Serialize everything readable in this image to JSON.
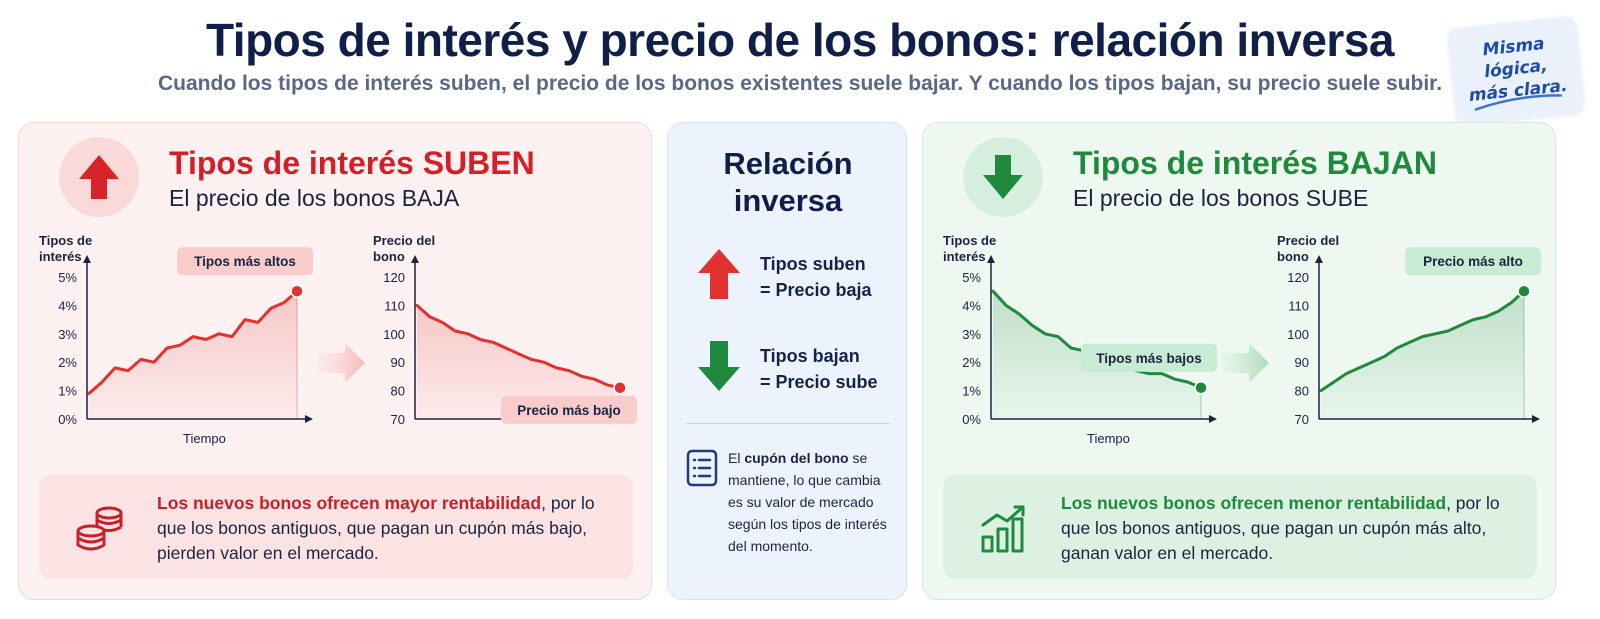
{
  "header": {
    "title": "Tipos de interés y precio de los bonos: relación inversa",
    "subtitle": "Cuando los tipos de interés suben, el precio de los bonos existentes suele bajar. Y cuando los tipos bajan, su precio suele subir."
  },
  "note": {
    "line1": "Misma lógica,",
    "line2": "más clara."
  },
  "left": {
    "title": "Tipos de interés SUBEN",
    "subtitle": "El precio de los bonos BAJA",
    "bottom_bold": "Los nuevos bonos ofrecen mayor rentabilidad",
    "bottom_rest": ", por lo que los bonos antiguos, que pagan un cupón más bajo, pierden valor en el mercado."
  },
  "center": {
    "title_line1": "Relación",
    "title_line2": "inversa",
    "up_line1": "Tipos suben",
    "up_line2": "= Precio baja",
    "down_line1": "Tipos bajan",
    "down_line2": "= Precio sube",
    "cupon_pre": "El ",
    "cupon_bold": "cupón del bono",
    "cupon_rest": " se mantiene, lo que cambia es su valor de mercado según los tipos de interés del momento."
  },
  "right": {
    "title": "Tipos de interés BAJAN",
    "subtitle": "El precio de los bonos SUBE",
    "bottom_bold": "Los nuevos bonos ofrecen menor rentabilidad",
    "bottom_rest": ", por lo que los bonos antiguos, que pagan un cupón más alto, ganan valor en el mercado."
  },
  "colors": {
    "red": "#e2312f",
    "green": "#1f8a3d",
    "navy": "#0f1f47"
  },
  "chart_data": [
    {
      "id": "left-rates",
      "type": "area",
      "color": "#e2312f",
      "ylabel": "Tipos de interés",
      "xlabel": "Tiempo",
      "yticks": [
        "0%",
        "1%",
        "2%",
        "3%",
        "4%",
        "5%"
      ],
      "ylim": [
        0,
        5
      ],
      "values": [
        0.9,
        1.3,
        1.8,
        1.7,
        2.1,
        2.0,
        2.5,
        2.6,
        2.9,
        2.8,
        3.0,
        2.9,
        3.5,
        3.4,
        3.9,
        4.1,
        4.5
      ],
      "annotation": "Tipos más altos",
      "annotation_at": "end"
    },
    {
      "id": "left-price",
      "type": "area",
      "color": "#e2312f",
      "ylabel": "Precio del bono",
      "xlabel": "",
      "yticks": [
        "70",
        "80",
        "90",
        "100",
        "110",
        "120"
      ],
      "ylim": [
        70,
        120
      ],
      "values": [
        110,
        106,
        104,
        101,
        100,
        98,
        97,
        95,
        93,
        91,
        90,
        88,
        87,
        85,
        84,
        82,
        81
      ],
      "annotation": "Precio más bajo",
      "annotation_at": "end"
    },
    {
      "id": "right-rates",
      "type": "area",
      "color": "#1f8a3d",
      "ylabel": "Tipos de interés",
      "xlabel": "Tiempo",
      "yticks": [
        "0%",
        "1%",
        "2%",
        "3%",
        "4%",
        "5%"
      ],
      "ylim": [
        0,
        5
      ],
      "values": [
        4.5,
        4.0,
        3.7,
        3.3,
        3.0,
        2.9,
        2.5,
        2.4,
        2.1,
        2.0,
        1.8,
        1.7,
        1.6,
        1.6,
        1.4,
        1.3,
        1.1
      ],
      "annotation": "Tipos más bajos",
      "annotation_at": "end"
    },
    {
      "id": "right-price",
      "type": "area",
      "color": "#1f8a3d",
      "ylabel": "Precio del bono",
      "xlabel": "",
      "yticks": [
        "70",
        "80",
        "90",
        "100",
        "110",
        "120"
      ],
      "ylim": [
        70,
        120
      ],
      "values": [
        80,
        83,
        86,
        88,
        90,
        92,
        95,
        97,
        99,
        100,
        101,
        103,
        105,
        106,
        108,
        111,
        115
      ],
      "annotation": "Precio más alto",
      "annotation_at": "end"
    }
  ]
}
